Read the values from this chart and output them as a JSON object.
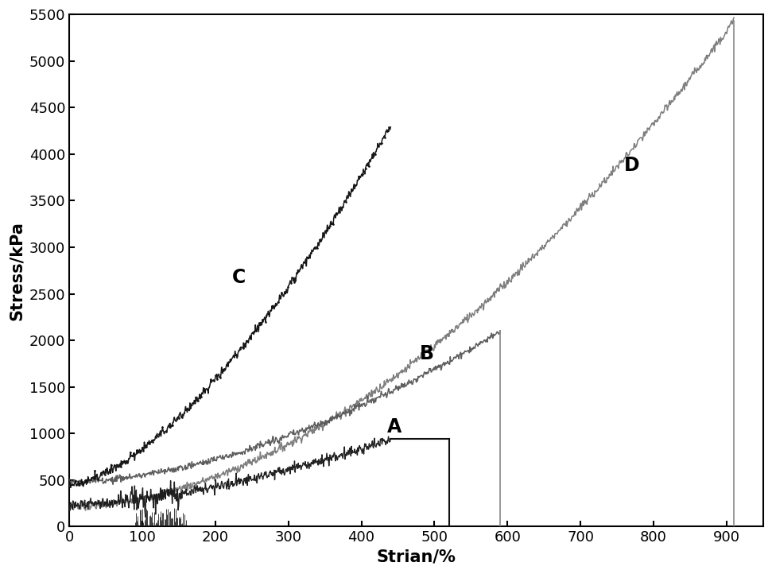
{
  "xlabel": "Strian/%",
  "ylabel": "Stress/kPa",
  "xlim": [
    0,
    950
  ],
  "ylim": [
    0,
    5500
  ],
  "xticks": [
    0,
    100,
    200,
    300,
    400,
    500,
    600,
    700,
    800,
    900
  ],
  "yticks": [
    0,
    500,
    1000,
    1500,
    2000,
    2500,
    3000,
    3500,
    4000,
    4500,
    5000,
    5500
  ],
  "color_A": "#1a1a1a",
  "color_B": "#555555",
  "color_C": "#111111",
  "color_D": "#777777",
  "color_vline_A": "#111111",
  "color_vline_BD": "#888888",
  "background_color": "#ffffff",
  "font_size_labels": 15,
  "font_size_ticks": 13,
  "font_size_curve_labels": 17,
  "label_A": [
    "A",
    445,
    1010
  ],
  "label_B": [
    "B",
    490,
    1800
  ],
  "label_C": [
    "C",
    232,
    2620
  ],
  "label_D": [
    "D",
    770,
    3820
  ]
}
